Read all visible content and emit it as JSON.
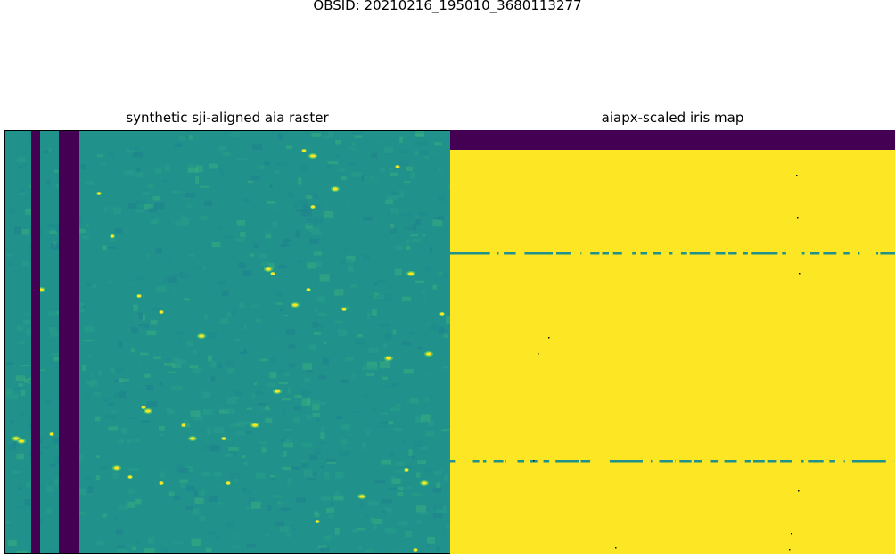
{
  "figure": {
    "suptitle": "OBSID: 20210216_195010_3680113277"
  },
  "panels": [
    {
      "title": "synthetic sji-aligned aia raster",
      "colormap": "viridis",
      "colors": {
        "background": "#21918c",
        "dark_band": "#440154",
        "bright": "#fde725",
        "mid_bright": "#5ec962"
      }
    },
    {
      "title": "aiapx-scaled iris map",
      "colormap": "viridis",
      "colors": {
        "fill": "#fde725",
        "top_band": "#440154",
        "line": "#21918c"
      }
    }
  ]
}
